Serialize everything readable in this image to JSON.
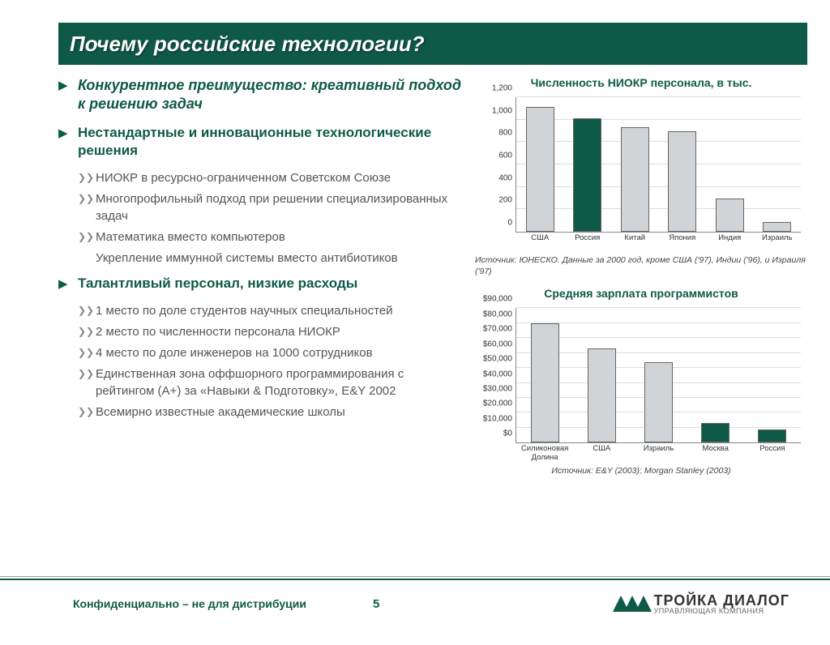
{
  "title": "Почему российские технологии?",
  "main_point": "Конкурентное преимущество: креативный подход к решению задач",
  "sections": [
    {
      "heading": "Нестандартные и инновационные технологические решения",
      "items": [
        "НИОКР в ресурсно-ограниченном Советском Союзе",
        "Многопрофильный подход при решении специализированных задач",
        "Математика вместо компьютеров",
        "Укрепление иммунной системы вместо антибиотиков"
      ],
      "no_bullet_idx": 3
    },
    {
      "heading": "Талантливый персонал, низкие расходы",
      "items": [
        "1 место по доле студентов научных специальностей",
        "2 место по численности персонала НИОКР",
        "4 место по доле инженеров на 1000 сотрудников",
        "Единственная зона оффшорного программирования с рейтингом (А+) за «Навыки & Подготовку», E&Y 2002",
        "Всемирно известные академические школы"
      ]
    }
  ],
  "chart1": {
    "title": "Численность НИОКР персонала, в тыс.",
    "type": "bar",
    "categories": [
      "США",
      "Россия",
      "Китай",
      "Япония",
      "Индия",
      "Израиль"
    ],
    "values": [
      1110,
      1010,
      930,
      900,
      300,
      90
    ],
    "colors": [
      "#d0d4d6",
      "#0f5a47",
      "#d0d4d6",
      "#d0d4d6",
      "#d0d4d6",
      "#d0d4d6"
    ],
    "ymax": 1200,
    "ymin": 0,
    "ystep": 200,
    "yticks": [
      "0",
      "200",
      "400",
      "600",
      "800",
      "1,000",
      "1,200"
    ],
    "bar_width_pct": 10,
    "source": "Источник: ЮНЕСКО. Данные за 2000 год, кроме США ('97), Индии ('96), и Израиля ('97)"
  },
  "chart2": {
    "title": "Средняя зарплата программистов",
    "type": "bar",
    "categories": [
      "Силиконовая Долина",
      "США",
      "Израиль",
      "Москва",
      "Россия"
    ],
    "values": [
      80000,
      63000,
      54000,
      13000,
      9000
    ],
    "colors": [
      "#d0d4d6",
      "#d0d4d6",
      "#d0d4d6",
      "#0f5a47",
      "#0f5a47"
    ],
    "ymax": 90000,
    "ymin": 0,
    "ystep": 10000,
    "yticks": [
      "$0",
      "$10,000",
      "$20,000",
      "$30,000",
      "$40,000",
      "$50,000",
      "$60,000",
      "$70,000",
      "$80,000",
      "$90,000"
    ],
    "bar_width_pct": 10,
    "source": "Источник:  E&Y (2003); Morgan Stanley (2003)"
  },
  "footer": {
    "confidential": "Конфиденциально – не для дистрибуции",
    "page": "5",
    "logo_main": "ТРОЙКА ДИАЛОГ",
    "logo_sub": "УПРАВЛЯЮЩАЯ КОМПАНИЯ"
  }
}
